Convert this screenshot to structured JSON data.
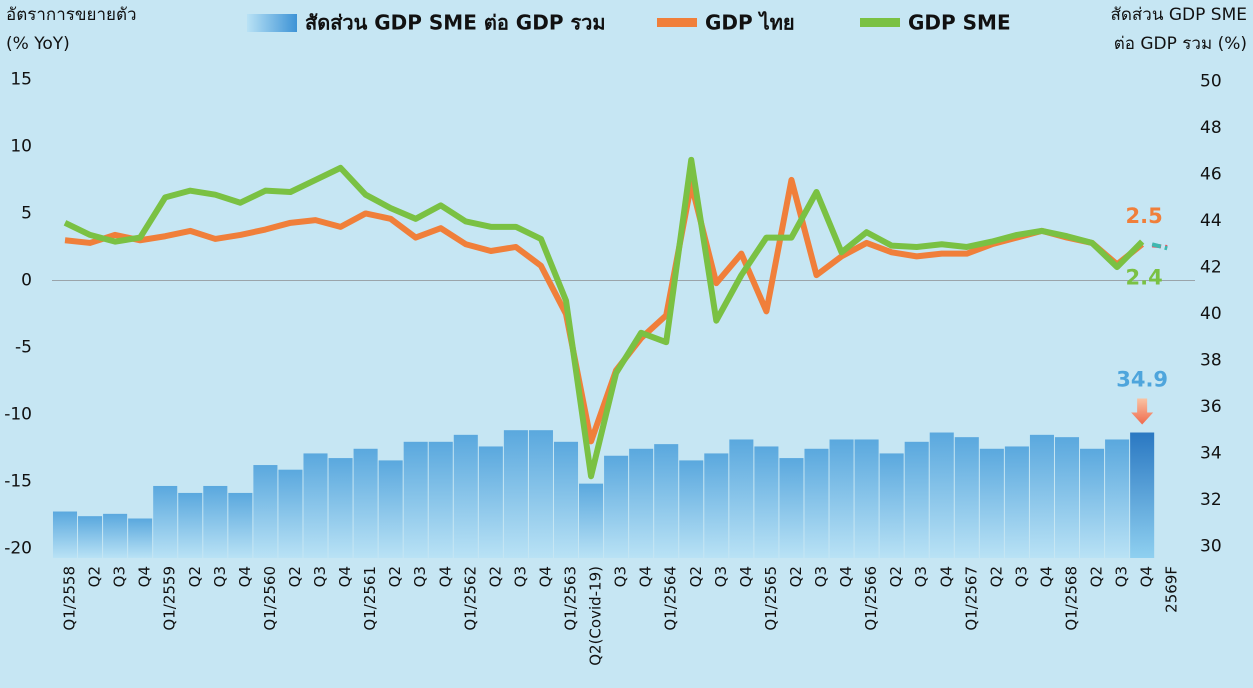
{
  "chart_data": {
    "type": "bar-line",
    "y_label": [
      "อัตราการขยายตัว",
      "(% YoY)"
    ],
    "y2_label": [
      "สัดส่วน GDP SME",
      "ต่อ GDP รวม (%)"
    ],
    "categories": [
      "Q1/2558",
      "Q2",
      "Q3",
      "Q4",
      "Q1/2559",
      "Q2",
      "Q3",
      "Q4",
      "Q1/2560",
      "Q2",
      "Q3",
      "Q4",
      "Q1/2561",
      "Q2",
      "Q3",
      "Q4",
      "Q1/2562",
      "Q2",
      "Q3",
      "Q4",
      "Q1/2563",
      "Q2(Covid-19)",
      "Q3",
      "Q4",
      "Q1/2564",
      "Q2",
      "Q3",
      "Q4",
      "Q1/2565",
      "Q2",
      "Q3",
      "Q4",
      "Q1/2566",
      "Q2",
      "Q3",
      "Q4",
      "Q1/2567",
      "Q2",
      "Q3",
      "Q4",
      "Q1/2568",
      "Q2",
      "Q3",
      "Q4",
      "2569F"
    ],
    "series": [
      {
        "name": "สัดส่วน GDP SME ต่อ GDP รวม",
        "kind": "bar",
        "axis": "y2",
        "color": "#5aa8de",
        "highlight_color": "#2a78c2",
        "values": [
          31.5,
          31.3,
          31.4,
          31.2,
          32.6,
          32.3,
          32.6,
          32.3,
          33.5,
          33.3,
          34.0,
          33.8,
          34.2,
          33.7,
          34.5,
          34.5,
          34.8,
          34.3,
          35.0,
          35.0,
          34.5,
          32.7,
          33.9,
          34.2,
          34.4,
          33.7,
          34.0,
          34.6,
          34.3,
          33.8,
          34.2,
          34.6,
          34.6,
          34.0,
          34.5,
          34.9,
          34.7,
          34.2,
          34.3,
          34.8,
          34.7,
          34.2,
          34.6,
          34.9,
          null
        ]
      },
      {
        "name": "GDP ไทย",
        "kind": "line",
        "color": "#f07f3a",
        "forecast_color": "#ef4f5a",
        "values": [
          3.0,
          2.8,
          3.4,
          3.0,
          3.3,
          3.7,
          3.1,
          3.4,
          3.8,
          4.3,
          4.5,
          4.0,
          5.0,
          4.6,
          3.2,
          3.9,
          2.7,
          2.2,
          2.5,
          1.1,
          -2.5,
          -12.0,
          -6.7,
          -4.3,
          -2.6,
          7.2,
          -0.2,
          2.0,
          -2.3,
          7.5,
          0.4,
          1.8,
          2.8,
          2.1,
          1.8,
          2.0,
          2.0,
          2.7,
          3.2,
          3.7,
          3.2,
          2.8,
          1.2,
          2.7,
          2.5
        ]
      },
      {
        "name": "GDP SME",
        "kind": "line",
        "color": "#7ac143",
        "forecast_color": "#3fb8b0",
        "values": [
          4.3,
          3.4,
          2.9,
          3.2,
          6.2,
          6.7,
          6.4,
          5.8,
          6.7,
          6.6,
          7.5,
          8.4,
          6.4,
          5.4,
          4.6,
          5.6,
          4.4,
          4.0,
          4.0,
          3.1,
          -1.5,
          -14.6,
          -6.9,
          -3.9,
          -4.6,
          9.0,
          -3.0,
          0.4,
          3.2,
          3.2,
          6.6,
          2.1,
          3.6,
          2.6,
          2.5,
          2.7,
          2.5,
          2.9,
          3.4,
          3.7,
          3.3,
          2.8,
          1.0,
          2.9,
          2.4
        ]
      }
    ],
    "ylim": [
      -20.7,
      15.7
    ],
    "yticks": [
      -20,
      -15,
      -10,
      -5,
      0,
      5,
      10,
      15
    ],
    "y2lim": [
      29.5,
      50.5
    ],
    "y2ticks": [
      30,
      32,
      34,
      36,
      38,
      40,
      42,
      44,
      46,
      48,
      50
    ]
  }
}
